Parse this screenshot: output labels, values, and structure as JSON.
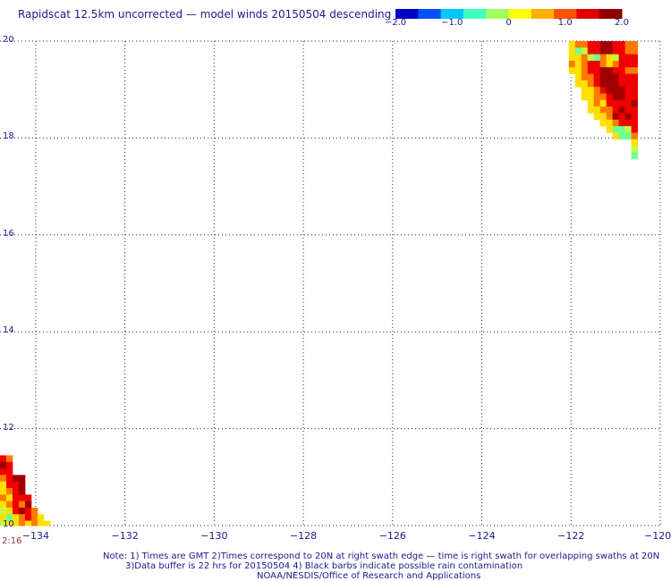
{
  "title": "Rapidscat 12.5km uncorrected — model winds 20150504 descending",
  "colorbar": {
    "ticks": [
      {
        "value": -2.0,
        "label": "−2.0"
      },
      {
        "value": -1.0,
        "label": "−1.0"
      },
      {
        "value": 0,
        "label": "0"
      },
      {
        "value": 1.0,
        "label": "1.0"
      },
      {
        "value": 2.0,
        "label": "2.0"
      }
    ],
    "colors": [
      "#0000c8",
      "#0050ff",
      "#00c8ff",
      "#40ffc0",
      "#a0ff60",
      "#ffff00",
      "#ffb000",
      "#ff5000",
      "#e00000",
      "#900000"
    ]
  },
  "map": {
    "lat_range": [
      10,
      20
    ],
    "lon_range": [
      -134.8,
      -120
    ],
    "lat_ticks": [
      {
        "value": 20,
        "label": "20"
      },
      {
        "value": 18,
        "label": "18"
      },
      {
        "value": 16,
        "label": "16"
      },
      {
        "value": 14,
        "label": "14"
      },
      {
        "value": 12,
        "label": "12"
      },
      {
        "value": 10,
        "label": "10"
      }
    ],
    "lon_ticks": [
      {
        "value": -134,
        "label": "−134"
      },
      {
        "value": -132,
        "label": "−132"
      },
      {
        "value": -130,
        "label": "−130"
      },
      {
        "value": -128,
        "label": "−128"
      },
      {
        "value": -126,
        "label": "−126"
      },
      {
        "value": -124,
        "label": "−124"
      },
      {
        "value": -122,
        "label": "−122"
      },
      {
        "value": -120,
        "label": "−120"
      }
    ],
    "swaths": [
      {
        "name": "northeast",
        "lon0": -122.05,
        "lat_top": 20.0,
        "cell_lon": 0.14,
        "cell_lat": 0.135,
        "rows": [
          "yoorrddrroo",
          "yglrrddrroo",
          "yyolgoylrrr",
          "oyorroyorrr",
          "yyorrddrroo",
          "xyoordddrrr",
          "xyyordddrrr",
          "xxyyordddrr",
          "xxyyoorddrr",
          "xxxyoyrrrrd",
          "xxxyyoordrr",
          "xxxxyyodrdr",
          "xxxxxyyorrr",
          "xxxxxxygglr",
          "xxxxxxxyggo",
          "xxxxxxxxxxy",
          "xxxxxxxxxxl",
          "xxxxxxxxxxg"
        ]
      },
      {
        "name": "southwest",
        "lon0": -134.8,
        "lat_top": 11.45,
        "cell_lon": 0.14,
        "cell_lat": 0.135,
        "rows": [
          "ro",
          "dr",
          "rr",
          "ordd",
          "yrrd",
          "yord",
          "oyrrr",
          "yorod",
          "lyrdro",
          "ygyoroy",
          "lyyoyoyy"
        ]
      }
    ],
    "cell_colors": {
      "y": "#ffe000",
      "o": "#ff7a00",
      "r": "#f00000",
      "d": "#a00000",
      "l": "#c0ff40",
      "g": "#70ff90"
    }
  },
  "time_label": "2:16",
  "notes": [
    "Note: 1) Times are GMT 2)Times correspond to 20N at right swath edge — time is right swath for overlapping swaths at 20N",
    "3)Data buffer is 22 hrs for 20150504 4) Black barbs indicate possible rain contamination",
    "NOAA/NESDIS/Office of Research and Applications"
  ]
}
